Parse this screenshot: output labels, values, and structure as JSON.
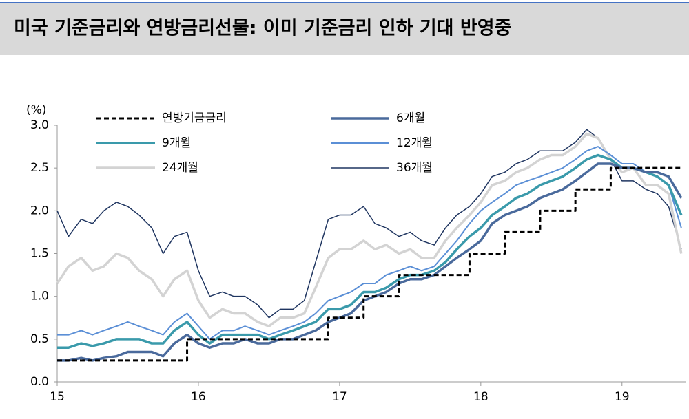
{
  "chart_data": {
    "type": "line",
    "title": "미국 기준금리와 연방금리선물: 이미 기준금리 인하 기대 반영중",
    "y_unit": "(%)",
    "x": [
      15,
      15.08,
      15.17,
      15.25,
      15.33,
      15.42,
      15.5,
      15.58,
      15.67,
      15.75,
      15.83,
      15.92,
      16,
      16.08,
      16.17,
      16.25,
      16.33,
      16.42,
      16.5,
      16.58,
      16.67,
      16.75,
      16.83,
      16.92,
      17,
      17.08,
      17.17,
      17.25,
      17.33,
      17.42,
      17.5,
      17.58,
      17.67,
      17.75,
      17.83,
      17.92,
      18,
      18.08,
      18.17,
      18.25,
      18.33,
      18.42,
      18.5,
      18.58,
      18.67,
      18.75,
      18.83,
      18.92,
      19,
      19.08,
      19.17,
      19.25,
      19.33,
      19.42
    ],
    "xlim": [
      15,
      19.45
    ],
    "xticks": [
      15,
      16,
      17,
      18,
      19
    ],
    "ylim": [
      0,
      3
    ],
    "yticks": [
      {
        "value": 0,
        "label": "0.0"
      },
      0.5,
      {
        "value": 1,
        "label": "1.0"
      },
      1.5,
      {
        "value": 2,
        "label": "2.0"
      },
      2.5,
      {
        "value": 3,
        "label": "3.0"
      }
    ],
    "series": [
      {
        "name": "연방기금금리",
        "color": "#000000",
        "dashed": true,
        "step": true,
        "values": [
          0.25,
          0.25,
          0.25,
          0.25,
          0.25,
          0.25,
          0.25,
          0.25,
          0.25,
          0.25,
          0.25,
          0.5,
          0.5,
          0.5,
          0.5,
          0.5,
          0.5,
          0.5,
          0.5,
          0.5,
          0.5,
          0.5,
          0.5,
          0.75,
          0.75,
          0.75,
          1,
          1,
          1,
          1.25,
          1.25,
          1.25,
          1.25,
          1.25,
          1.25,
          1.5,
          1.5,
          1.5,
          1.75,
          1.75,
          1.75,
          2,
          2,
          2,
          2.25,
          2.25,
          2.25,
          2.5,
          2.5,
          2.5,
          2.5,
          2.5,
          2.5,
          2.5
        ]
      },
      {
        "name": "6개월",
        "color": "#4a6a9c",
        "values": [
          0.25,
          0.25,
          0.28,
          0.25,
          0.28,
          0.3,
          0.35,
          0.35,
          0.35,
          0.3,
          0.45,
          0.55,
          0.45,
          0.4,
          0.45,
          0.45,
          0.5,
          0.45,
          0.45,
          0.5,
          0.5,
          0.55,
          0.6,
          0.7,
          0.75,
          0.8,
          0.95,
          1,
          1.05,
          1.15,
          1.2,
          1.2,
          1.25,
          1.35,
          1.45,
          1.55,
          1.65,
          1.85,
          1.95,
          2,
          2.05,
          2.15,
          2.2,
          2.25,
          2.35,
          2.45,
          2.55,
          2.55,
          2.5,
          2.5,
          2.45,
          2.45,
          2.4,
          2.15
        ]
      },
      {
        "name": "9개월",
        "color": "#3a9aab",
        "values": [
          0.4,
          0.4,
          0.45,
          0.42,
          0.45,
          0.5,
          0.5,
          0.5,
          0.45,
          0.45,
          0.6,
          0.7,
          0.55,
          0.45,
          0.55,
          0.55,
          0.55,
          0.55,
          0.5,
          0.55,
          0.6,
          0.65,
          0.7,
          0.85,
          0.85,
          0.9,
          1.05,
          1.05,
          1.1,
          1.2,
          1.25,
          1.25,
          1.3,
          1.4,
          1.55,
          1.7,
          1.8,
          1.95,
          2.05,
          2.15,
          2.2,
          2.3,
          2.35,
          2.4,
          2.5,
          2.6,
          2.65,
          2.6,
          2.5,
          2.5,
          2.45,
          2.4,
          2.3,
          1.95
        ]
      },
      {
        "name": "12개월",
        "color": "#5b8fd6",
        "values": [
          0.55,
          0.55,
          0.6,
          0.55,
          0.6,
          0.65,
          0.7,
          0.65,
          0.6,
          0.55,
          0.7,
          0.8,
          0.65,
          0.5,
          0.6,
          0.6,
          0.65,
          0.6,
          0.55,
          0.6,
          0.65,
          0.7,
          0.8,
          0.95,
          1,
          1.05,
          1.15,
          1.15,
          1.25,
          1.3,
          1.35,
          1.3,
          1.35,
          1.5,
          1.65,
          1.85,
          2,
          2.1,
          2.2,
          2.3,
          2.35,
          2.4,
          2.45,
          2.5,
          2.6,
          2.7,
          2.75,
          2.65,
          2.55,
          2.55,
          2.45,
          2.4,
          2.3,
          1.8
        ]
      },
      {
        "name": "24개월",
        "color": "#d3d3d3",
        "values": [
          1.15,
          1.35,
          1.45,
          1.3,
          1.35,
          1.5,
          1.45,
          1.3,
          1.2,
          1,
          1.2,
          1.3,
          0.95,
          0.75,
          0.85,
          0.8,
          0.8,
          0.7,
          0.65,
          0.75,
          0.75,
          0.8,
          1.1,
          1.45,
          1.55,
          1.55,
          1.65,
          1.55,
          1.6,
          1.5,
          1.55,
          1.45,
          1.45,
          1.65,
          1.8,
          1.95,
          2.1,
          2.3,
          2.35,
          2.45,
          2.5,
          2.6,
          2.65,
          2.65,
          2.75,
          2.9,
          2.85,
          2.6,
          2.45,
          2.5,
          2.3,
          2.3,
          2.2,
          1.5
        ]
      },
      {
        "name": "36개월",
        "color": "#1f3560",
        "values": [
          2,
          1.7,
          1.9,
          1.85,
          2,
          2.1,
          2.05,
          1.95,
          1.8,
          1.5,
          1.7,
          1.75,
          1.3,
          1,
          1.05,
          1,
          1,
          0.9,
          0.75,
          0.85,
          0.85,
          0.95,
          1.4,
          1.9,
          1.95,
          1.95,
          2.05,
          1.85,
          1.8,
          1.7,
          1.75,
          1.65,
          1.6,
          1.8,
          1.95,
          2.05,
          2.2,
          2.4,
          2.45,
          2.55,
          2.6,
          2.7,
          2.7,
          2.7,
          2.8,
          2.95,
          2.85,
          2.6,
          2.35,
          2.35,
          2.25,
          2.2,
          2.05,
          1.55
        ]
      }
    ]
  }
}
